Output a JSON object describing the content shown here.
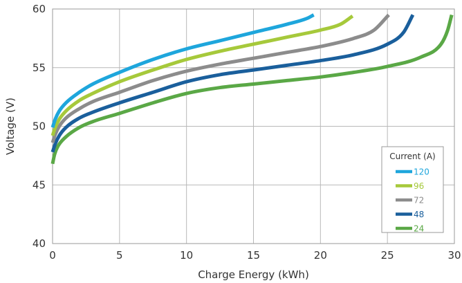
{
  "chart_data": {
    "type": "line",
    "title": "",
    "xlabel": "Charge Energy (kWh)",
    "ylabel": "Voltage (V)",
    "xlim": [
      0,
      30
    ],
    "ylim": [
      40,
      60
    ],
    "xticks": [
      "0",
      "5",
      "10",
      "15",
      "20",
      "25",
      "30"
    ],
    "yticks": [
      "40",
      "45",
      "50",
      "55",
      "60"
    ],
    "grid": true,
    "legend": {
      "title": "Current (A)",
      "position": "bottom-right"
    },
    "series": [
      {
        "name": "120",
        "color": "#1ea6dc",
        "x": [
          0,
          0.2,
          0.5,
          1,
          2,
          3,
          5,
          7.5,
          10,
          12.5,
          15,
          17.5,
          19,
          19.5
        ],
        "y": [
          49.9,
          50.6,
          51.3,
          52.0,
          52.9,
          53.6,
          54.6,
          55.7,
          56.6,
          57.3,
          58.0,
          58.7,
          59.2,
          59.5
        ]
      },
      {
        "name": "96",
        "color": "#a6c93b",
        "x": [
          0,
          0.2,
          0.5,
          1,
          2,
          3,
          5,
          7.5,
          10,
          12.5,
          15,
          17.5,
          20,
          21.5,
          22.4
        ],
        "y": [
          49.2,
          49.9,
          50.6,
          51.3,
          52.2,
          52.8,
          53.8,
          54.8,
          55.7,
          56.4,
          57.0,
          57.6,
          58.2,
          58.7,
          59.4
        ]
      },
      {
        "name": "72",
        "color": "#8c8c8c",
        "x": [
          0,
          0.2,
          0.5,
          1,
          2,
          3,
          5,
          7.5,
          10,
          12.5,
          15,
          17.5,
          20,
          22.5,
          24,
          25.1
        ],
        "y": [
          48.6,
          49.3,
          50.0,
          50.7,
          51.5,
          52.1,
          52.9,
          53.9,
          54.7,
          55.3,
          55.8,
          56.3,
          56.8,
          57.5,
          58.2,
          59.5
        ]
      },
      {
        "name": "48",
        "color": "#1a5f9c",
        "x": [
          0,
          0.2,
          0.5,
          1,
          2,
          3,
          5,
          7.5,
          10,
          12.5,
          15,
          17.5,
          20,
          22.5,
          25,
          26.2,
          26.9
        ],
        "y": [
          47.8,
          48.5,
          49.2,
          49.9,
          50.7,
          51.2,
          52.0,
          52.9,
          53.8,
          54.4,
          54.8,
          55.2,
          55.6,
          56.1,
          57.0,
          58.0,
          59.5
        ]
      },
      {
        "name": "24",
        "color": "#5aa846",
        "x": [
          0,
          0.15,
          0.4,
          1,
          2,
          3,
          5,
          7.5,
          10,
          12.5,
          15,
          17.5,
          20,
          22.5,
          25,
          27.5,
          29,
          29.5,
          29.8
        ],
        "y": [
          46.8,
          47.6,
          48.3,
          49.1,
          49.9,
          50.4,
          51.1,
          52.0,
          52.8,
          53.3,
          53.6,
          53.9,
          54.2,
          54.6,
          55.1,
          55.9,
          57.0,
          58.2,
          59.5
        ]
      }
    ]
  }
}
